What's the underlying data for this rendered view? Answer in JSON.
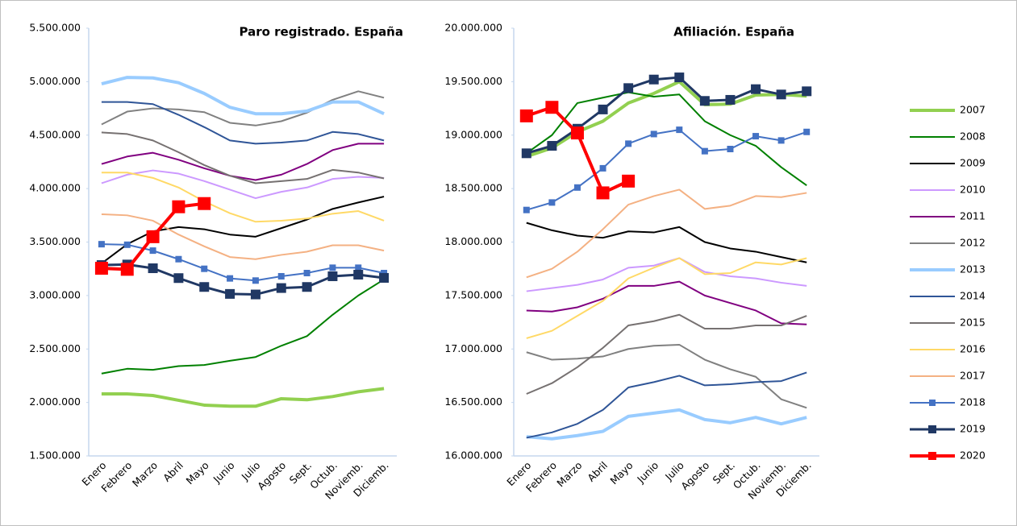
{
  "chart_data": [
    {
      "type": "line",
      "title": "Paro registrado.  España",
      "categories": [
        "Enero",
        "Febrero",
        "Marzo",
        "Abril",
        "Mayo",
        "Junio",
        "Julio",
        "Agosto",
        "Sept.",
        "Octub.",
        "Noviemb.",
        "Diciemb."
      ],
      "ylim": [
        1500000,
        5500000
      ],
      "yticks": [
        {
          "value": 1500000,
          "label": "1.500.000"
        },
        {
          "value": 2000000,
          "label": "2.000.000"
        },
        {
          "value": 2500000,
          "label": "2.500.000"
        },
        {
          "value": 3000000,
          "label": "3.000.000"
        },
        {
          "value": 3500000,
          "label": "3.500.000"
        },
        {
          "value": 4000000,
          "label": "4.000.000"
        },
        {
          "value": 4500000,
          "label": "4.500.000"
        },
        {
          "value": 5000000,
          "label": "5.000.000"
        },
        {
          "value": 5500000,
          "label": "5.500.000"
        }
      ],
      "series": [
        {
          "name": "2007",
          "color": "#92d050",
          "line_width": 4,
          "values": [
            2080000,
            2080000,
            2065000,
            2020000,
            1975000,
            1965000,
            1965000,
            2035000,
            2025000,
            2055000,
            2100000,
            2130000
          ]
        },
        {
          "name": "2008",
          "color": "#008000",
          "line_width": 2,
          "values": [
            2270000,
            2315000,
            2305000,
            2340000,
            2350000,
            2390000,
            2425000,
            2530000,
            2620000,
            2820000,
            3000000,
            3150000
          ]
        },
        {
          "name": "2009",
          "color": "#000000",
          "line_width": 2,
          "values": [
            3300000,
            3480000,
            3600000,
            3640000,
            3620000,
            3570000,
            3550000,
            3630000,
            3710000,
            3810000,
            3870000,
            3925000
          ]
        },
        {
          "name": "2010",
          "color": "#cc99ff",
          "line_width": 2,
          "values": [
            4050000,
            4130000,
            4170000,
            4140000,
            4070000,
            3990000,
            3910000,
            3970000,
            4010000,
            4090000,
            4110000,
            4100000
          ]
        },
        {
          "name": "2011",
          "color": "#800080",
          "line_width": 2,
          "values": [
            4230000,
            4300000,
            4335000,
            4270000,
            4190000,
            4120000,
            4080000,
            4130000,
            4230000,
            4360000,
            4420000,
            4420000
          ]
        },
        {
          "name": "2012",
          "color": "#808080",
          "line_width": 2,
          "values": [
            4600000,
            4720000,
            4750000,
            4740000,
            4715000,
            4615000,
            4590000,
            4630000,
            4710000,
            4830000,
            4910000,
            4850000
          ]
        },
        {
          "name": "2013",
          "color": "#99ccff",
          "line_width": 4,
          "values": [
            4980000,
            5040000,
            5035000,
            4990000,
            4890000,
            4760000,
            4700000,
            4700000,
            4725000,
            4810000,
            4810000,
            4700000
          ]
        },
        {
          "name": "2014",
          "color": "#2f5597",
          "line_width": 2,
          "values": [
            4810000,
            4810000,
            4790000,
            4690000,
            4575000,
            4450000,
            4420000,
            4430000,
            4450000,
            4530000,
            4510000,
            4450000
          ]
        },
        {
          "name": "2015",
          "color": "#767171",
          "line_width": 2,
          "values": [
            4525000,
            4510000,
            4450000,
            4340000,
            4220000,
            4120000,
            4050000,
            4070000,
            4090000,
            4175000,
            4150000,
            4095000
          ]
        },
        {
          "name": "2016",
          "color": "#ffd966",
          "line_width": 2,
          "values": [
            4150000,
            4150000,
            4100000,
            4010000,
            3880000,
            3770000,
            3690000,
            3700000,
            3720000,
            3765000,
            3790000,
            3700000
          ]
        },
        {
          "name": "2017",
          "color": "#f4b183",
          "line_width": 2,
          "values": [
            3760000,
            3750000,
            3700000,
            3570000,
            3460000,
            3360000,
            3340000,
            3380000,
            3410000,
            3470000,
            3470000,
            3420000
          ]
        },
        {
          "name": "2018",
          "color": "#4472c4",
          "line_width": 2,
          "marker": "square",
          "marker_size": 8,
          "values": [
            3480000,
            3475000,
            3420000,
            3340000,
            3250000,
            3160000,
            3140000,
            3180000,
            3210000,
            3260000,
            3260000,
            3210000
          ]
        },
        {
          "name": "2019",
          "color": "#203864",
          "line_width": 3,
          "marker": "square",
          "marker_size": 12,
          "values": [
            3285000,
            3290000,
            3255000,
            3163000,
            3080000,
            3015000,
            3010000,
            3070000,
            3080000,
            3180000,
            3195000,
            3165000
          ]
        },
        {
          "name": "2020",
          "color": "#ff0000",
          "line_width": 4,
          "marker": "square",
          "marker_size": 16,
          "values": [
            3255000,
            3245000,
            3550000,
            3830000,
            3860000,
            null,
            null,
            null,
            null,
            null,
            null,
            null
          ]
        }
      ]
    },
    {
      "type": "line",
      "title": "Afiliación.  España",
      "categories": [
        "Enero",
        "Febrero",
        "Marzo",
        "Abril",
        "Mayo",
        "Junio",
        "Julio",
        "Agosto",
        "Sept.",
        "Octub.",
        "Noviemb.",
        "Diciemb."
      ],
      "ylim": [
        16000000,
        20000000
      ],
      "yticks": [
        {
          "value": 16000000,
          "label": "16.000.000"
        },
        {
          "value": 16500000,
          "label": "16.500.000"
        },
        {
          "value": 17000000,
          "label": "17.000.000"
        },
        {
          "value": 17500000,
          "label": "17.500.000"
        },
        {
          "value": 18000000,
          "label": "18.000.000"
        },
        {
          "value": 18500000,
          "label": "18.500.000"
        },
        {
          "value": 19000000,
          "label": "19.000.000"
        },
        {
          "value": 19500000,
          "label": "19.500.000"
        },
        {
          "value": 20000000,
          "label": "20.000.000"
        }
      ],
      "series": [
        {
          "color": "#92d050",
          "line_width": 4,
          "values": [
            18800000,
            18880000,
            19030000,
            19130000,
            19300000,
            19390000,
            19500000,
            19285000,
            19290000,
            19375000,
            19380000,
            19365000
          ]
        },
        {
          "color": "#008000",
          "line_width": 2,
          "values": [
            18830000,
            19000000,
            19300000,
            19350000,
            19400000,
            19360000,
            19380000,
            19130000,
            19000000,
            18900000,
            18700000,
            18530000
          ]
        },
        {
          "color": "#000000",
          "line_width": 2,
          "values": [
            18180000,
            18110000,
            18060000,
            18040000,
            18100000,
            18090000,
            18140000,
            18000000,
            17940000,
            17910000,
            17860000,
            17810000
          ]
        },
        {
          "color": "#cc99ff",
          "line_width": 2,
          "values": [
            17540000,
            17570000,
            17600000,
            17650000,
            17760000,
            17780000,
            17850000,
            17720000,
            17680000,
            17660000,
            17620000,
            17590000
          ]
        },
        {
          "color": "#800080",
          "line_width": 2,
          "values": [
            17360000,
            17350000,
            17390000,
            17470000,
            17590000,
            17590000,
            17630000,
            17500000,
            17430000,
            17360000,
            17240000,
            17230000
          ]
        },
        {
          "color": "#808080",
          "line_width": 2,
          "values": [
            16970000,
            16900000,
            16910000,
            16930000,
            17000000,
            17030000,
            17040000,
            16900000,
            16810000,
            16740000,
            16530000,
            16450000
          ]
        },
        {
          "color": "#99ccff",
          "line_width": 4,
          "values": [
            16180000,
            16160000,
            16190000,
            16230000,
            16370000,
            16400000,
            16430000,
            16340000,
            16310000,
            16360000,
            16300000,
            16360000
          ]
        },
        {
          "color": "#2f5597",
          "line_width": 2,
          "values": [
            16170000,
            16220000,
            16300000,
            16430000,
            16640000,
            16690000,
            16750000,
            16660000,
            16670000,
            16690000,
            16700000,
            16780000
          ]
        },
        {
          "color": "#767171",
          "line_width": 2,
          "values": [
            16580000,
            16680000,
            16830000,
            17010000,
            17220000,
            17260000,
            17320000,
            17190000,
            17190000,
            17220000,
            17220000,
            17310000
          ]
        },
        {
          "color": "#ffd966",
          "line_width": 2,
          "values": [
            17100000,
            17170000,
            17310000,
            17450000,
            17660000,
            17760000,
            17850000,
            17700000,
            17710000,
            17810000,
            17790000,
            17850000
          ]
        },
        {
          "color": "#f4b183",
          "line_width": 2,
          "values": [
            17670000,
            17750000,
            17910000,
            18120000,
            18350000,
            18430000,
            18490000,
            18310000,
            18340000,
            18430000,
            18420000,
            18460000
          ]
        },
        {
          "color": "#4472c4",
          "line_width": 2,
          "marker": "square",
          "marker_size": 8,
          "values": [
            18300000,
            18370000,
            18510000,
            18690000,
            18920000,
            19010000,
            19050000,
            18850000,
            18870000,
            18990000,
            18950000,
            19030000
          ]
        },
        {
          "color": "#203864",
          "line_width": 3,
          "marker": "square",
          "marker_size": 12,
          "values": [
            18830000,
            18900000,
            19060000,
            19240000,
            19440000,
            19520000,
            19540000,
            19320000,
            19330000,
            19430000,
            19380000,
            19410000
          ]
        },
        {
          "color": "#ff0000",
          "line_width": 4,
          "marker": "square",
          "marker_size": 16,
          "values": [
            19180000,
            19260000,
            19020000,
            18460000,
            18570000,
            null,
            null,
            null,
            null,
            null,
            null,
            null
          ]
        }
      ]
    }
  ]
}
